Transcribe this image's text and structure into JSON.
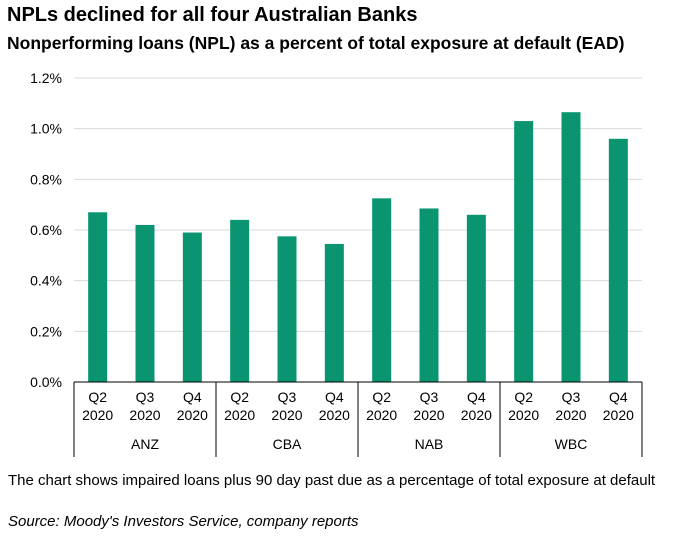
{
  "title": "NPLs declined for all four Australian Banks",
  "subtitle": "Nonperforming loans (NPL) as a percent of total exposure at default (EAD)",
  "footnote": "The chart shows impaired loans plus 90 day past due as a percentage of total exposure at default",
  "source": "Source: Moody's Investors Service, company reports",
  "colors": {
    "bar": "#0a9470",
    "axis": "#000000",
    "grid": "#d9d9d9"
  },
  "chart_data": {
    "type": "bar",
    "ylim": [
      0,
      1.2
    ],
    "yticks": [
      "0.0%",
      "0.2%",
      "0.4%",
      "0.6%",
      "0.8%",
      "1.0%",
      "1.2%"
    ],
    "ytick_values": [
      0,
      0.2,
      0.4,
      0.6,
      0.8,
      1.0,
      1.2
    ],
    "grid": true,
    "groups": [
      {
        "name": "ANZ",
        "quarters": [
          [
            "Q2",
            "2020"
          ],
          [
            "Q3",
            "2020"
          ],
          [
            "Q4",
            "2020"
          ]
        ],
        "values": [
          0.67,
          0.62,
          0.59
        ]
      },
      {
        "name": "CBA",
        "quarters": [
          [
            "Q2",
            "2020"
          ],
          [
            "Q3",
            "2020"
          ],
          [
            "Q4",
            "2020"
          ]
        ],
        "values": [
          0.64,
          0.575,
          0.545
        ]
      },
      {
        "name": "NAB",
        "quarters": [
          [
            "Q2",
            "2020"
          ],
          [
            "Q3",
            "2020"
          ],
          [
            "Q4",
            "2020"
          ]
        ],
        "values": [
          0.725,
          0.685,
          0.66
        ]
      },
      {
        "name": "WBC",
        "quarters": [
          [
            "Q2",
            "2020"
          ],
          [
            "Q3",
            "2020"
          ],
          [
            "Q4",
            "2020"
          ]
        ],
        "values": [
          1.03,
          1.065,
          0.96
        ]
      }
    ]
  }
}
